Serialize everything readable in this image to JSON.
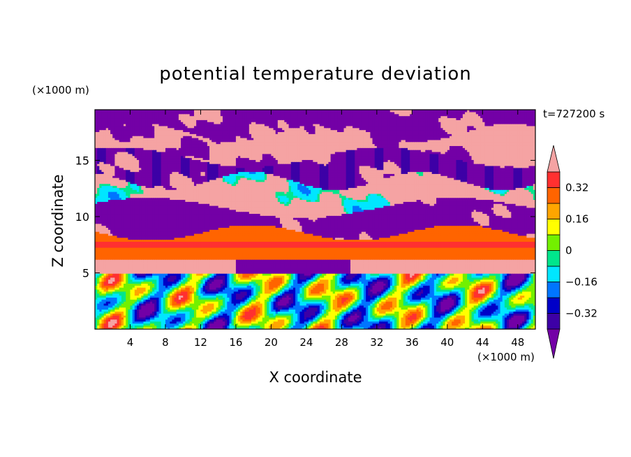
{
  "chart_data": {
    "type": "heatmap",
    "title": "potential temperature deviation",
    "xlabel": "X coordinate",
    "ylabel": "Z coordinate",
    "x_unit": "(×1000 m)",
    "y_unit": "(×1000 m)",
    "time_label": "t=727200 s",
    "xlim": [
      0,
      50
    ],
    "ylim": [
      0,
      19.5
    ],
    "x_ticks": [
      4,
      8,
      12,
      16,
      20,
      24,
      28,
      32,
      36,
      40,
      44,
      48
    ],
    "y_ticks": [
      5,
      10,
      15
    ],
    "colorbar": {
      "levels": [
        -0.4,
        -0.32,
        -0.24,
        -0.16,
        -0.08,
        0,
        0.08,
        0.16,
        0.24,
        0.32,
        0.4
      ],
      "tick_labels": [
        "−0.32",
        "−0.16",
        "0",
        "0.16",
        "0.32"
      ],
      "tick_values": [
        -0.32,
        -0.16,
        0,
        0.16,
        0.32
      ],
      "under_color": "#7300a6",
      "over_color": "#f5a3a3",
      "colors": [
        "#3d00a6",
        "#0000c8",
        "#0075ff",
        "#00e6ff",
        "#00e68c",
        "#73f000",
        "#ffff00",
        "#ffa500",
        "#ff6400",
        "#ff3030"
      ]
    },
    "layers": [
      {
        "z": [
          17.5,
          19.5
        ],
        "value": -0.45
      },
      {
        "z": [
          15.5,
          17.5
        ],
        "value": 0.45
      },
      {
        "z": [
          13.0,
          15.5
        ],
        "value": -0.45
      },
      {
        "z": [
          10.5,
          13.0
        ],
        "value": 0.45
      },
      {
        "z": [
          8.5,
          10.5
        ],
        "value": -0.45
      },
      {
        "z": [
          6.0,
          8.5
        ],
        "value": 0.3
      },
      {
        "z": [
          5.0,
          6.0
        ],
        "value": 0.45
      },
      {
        "z": [
          0,
          5.0
        ],
        "value": "mixed"
      }
    ]
  }
}
